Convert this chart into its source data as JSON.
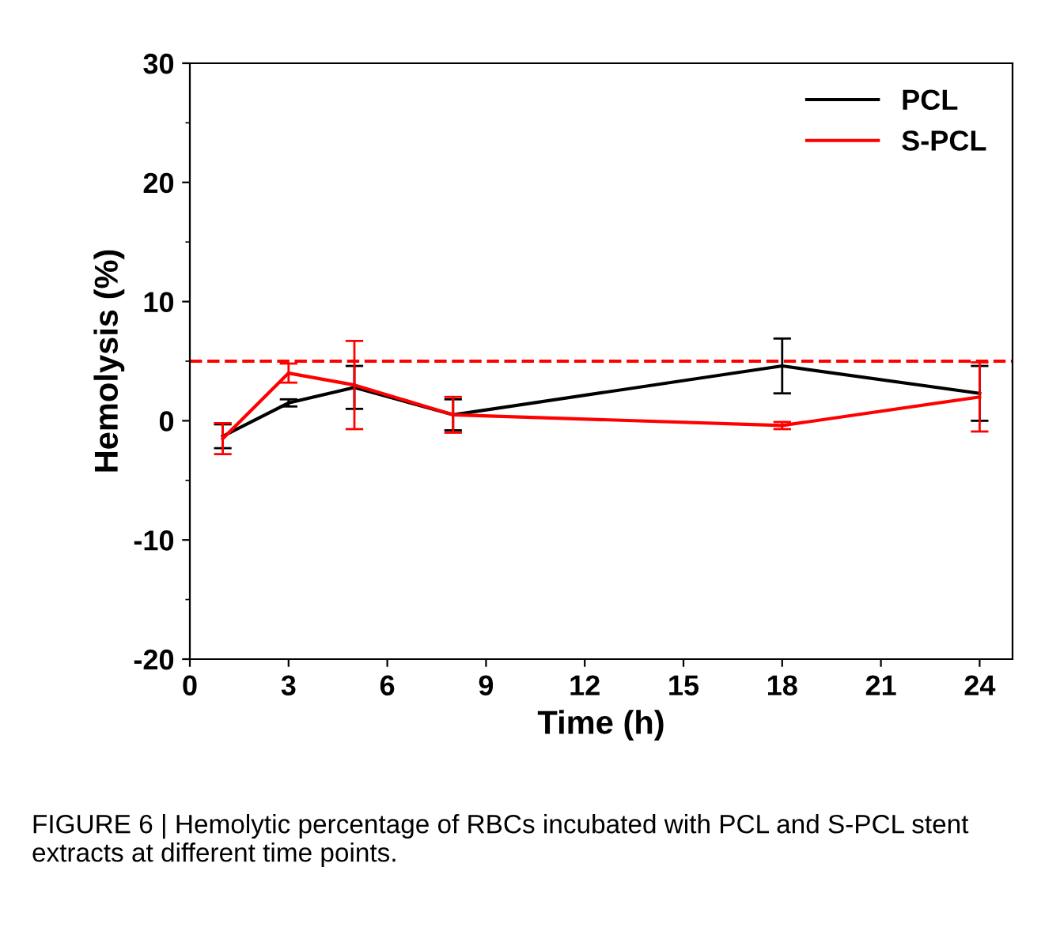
{
  "chart_data": {
    "type": "line",
    "xlabel": "Time (h)",
    "ylabel": "Hemolysis (%)",
    "x": [
      1,
      3,
      5,
      8,
      18,
      24
    ],
    "series": [
      {
        "name": "PCL",
        "color": "#000000",
        "values": [
          -1.3,
          1.5,
          2.8,
          0.5,
          4.6,
          2.3
        ],
        "errors": [
          1.0,
          0.3,
          1.8,
          1.3,
          2.3,
          2.3
        ]
      },
      {
        "name": "S-PCL",
        "color": "#ff0000",
        "values": [
          -1.5,
          4.0,
          3.0,
          0.5,
          -0.4,
          2.0
        ],
        "errors": [
          1.3,
          0.8,
          3.7,
          1.5,
          0.3,
          2.9
        ]
      }
    ],
    "xlim": [
      0,
      25
    ],
    "xticks": [
      0,
      3,
      6,
      9,
      12,
      15,
      18,
      21,
      24
    ],
    "ylim": [
      -20,
      30
    ],
    "yticks": [
      -20,
      -10,
      0,
      10,
      20,
      30
    ],
    "ref_lines": [
      {
        "axis": "y",
        "value": 5,
        "color": "#ff0000",
        "line_style": "dashed"
      }
    ],
    "legend": "top right",
    "grid": false,
    "marker": "none",
    "line_style": "solid",
    "annotations": [
      "FIGURE 6 | Hemolytic percentage of RBCs incubated with PCL and S-PCL stent extracts at different time points."
    ]
  }
}
